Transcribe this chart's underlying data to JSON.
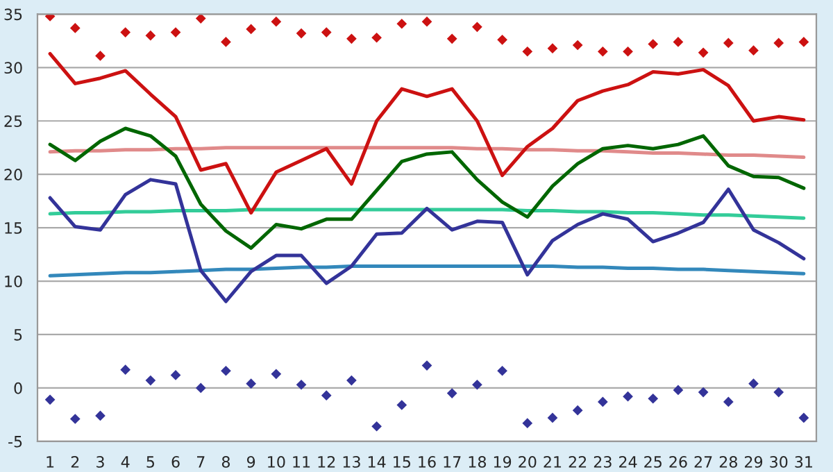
{
  "chart_data": {
    "type": "line",
    "x": [
      1,
      2,
      3,
      4,
      5,
      6,
      7,
      8,
      9,
      10,
      11,
      12,
      13,
      14,
      15,
      16,
      17,
      18,
      19,
      20,
      21,
      22,
      23,
      24,
      25,
      26,
      27,
      28,
      29,
      30,
      31
    ],
    "xlim": [
      0.5,
      31.5
    ],
    "xticks": [
      1,
      2,
      3,
      4,
      5,
      6,
      7,
      8,
      9,
      10,
      11,
      12,
      13,
      14,
      15,
      16,
      17,
      18,
      19,
      20,
      21,
      22,
      23,
      24,
      25,
      26,
      27,
      28,
      29,
      30,
      31
    ],
    "ylim": [
      -5,
      35
    ],
    "yticks": [
      -5,
      0,
      5,
      10,
      15,
      20,
      25,
      30,
      35
    ],
    "grid": "y",
    "legend": false,
    "series": [
      {
        "color": "#e08a8a",
        "values": [
          22.1,
          22.2,
          22.2,
          22.3,
          22.3,
          22.4,
          22.4,
          22.5,
          22.5,
          22.5,
          22.5,
          22.5,
          22.5,
          22.5,
          22.5,
          22.5,
          22.5,
          22.4,
          22.4,
          22.3,
          22.3,
          22.2,
          22.2,
          22.1,
          22.0,
          22.0,
          21.9,
          21.8,
          21.8,
          21.7,
          21.6
        ]
      },
      {
        "color": "#33cc99",
        "values": [
          16.3,
          16.4,
          16.4,
          16.5,
          16.5,
          16.6,
          16.6,
          16.6,
          16.7,
          16.7,
          16.7,
          16.7,
          16.7,
          16.7,
          16.7,
          16.7,
          16.7,
          16.7,
          16.7,
          16.6,
          16.6,
          16.5,
          16.5,
          16.4,
          16.4,
          16.3,
          16.2,
          16.2,
          16.1,
          16.0,
          15.9
        ]
      },
      {
        "color": "#3388bb",
        "values": [
          10.5,
          10.6,
          10.7,
          10.8,
          10.8,
          10.9,
          11.0,
          11.1,
          11.1,
          11.2,
          11.3,
          11.3,
          11.4,
          11.4,
          11.4,
          11.4,
          11.4,
          11.4,
          11.4,
          11.4,
          11.4,
          11.3,
          11.3,
          11.2,
          11.2,
          11.1,
          11.1,
          11.0,
          10.9,
          10.8,
          10.7
        ]
      },
      {
        "color": "#cc1111",
        "values": [
          31.3,
          28.5,
          29.0,
          29.7,
          27.5,
          25.4,
          20.4,
          21.0,
          16.4,
          20.2,
          21.3,
          22.4,
          19.1,
          25.0,
          28.0,
          27.3,
          28.0,
          25.0,
          19.9,
          22.6,
          24.3,
          26.9,
          27.8,
          28.4,
          29.6,
          29.4,
          29.8,
          28.3,
          25.0,
          25.4,
          25.1
        ]
      },
      {
        "color": "#006600",
        "values": [
          22.8,
          21.3,
          23.1,
          24.3,
          23.6,
          21.7,
          17.2,
          14.7,
          13.1,
          15.3,
          14.9,
          15.8,
          15.8,
          18.5,
          21.2,
          21.9,
          22.1,
          19.5,
          17.4,
          16.0,
          18.9,
          21.0,
          22.4,
          22.7,
          22.4,
          22.8,
          23.6,
          20.8,
          19.8,
          19.7,
          18.7
        ]
      },
      {
        "color": "#333399",
        "values": [
          17.8,
          15.1,
          14.8,
          18.1,
          19.5,
          19.1,
          11.0,
          8.1,
          10.9,
          12.4,
          12.4,
          9.8,
          11.4,
          14.4,
          14.5,
          16.8,
          14.8,
          15.6,
          15.5,
          10.6,
          13.8,
          15.3,
          16.3,
          15.8,
          13.7,
          14.5,
          15.5,
          18.6,
          14.8,
          13.6,
          12.1
        ]
      },
      {
        "type": "scatter",
        "marker": "diamond",
        "color": "#cc1111",
        "values": [
          34.8,
          33.7,
          31.1,
          33.3,
          33.0,
          33.3,
          34.6,
          32.4,
          33.6,
          34.3,
          33.2,
          33.3,
          32.7,
          32.8,
          34.1,
          34.3,
          32.7,
          33.8,
          32.6,
          31.5,
          31.8,
          32.1,
          31.5,
          31.5,
          32.2,
          32.4,
          31.4,
          32.3,
          31.6,
          32.3,
          32.4
        ]
      },
      {
        "type": "scatter",
        "marker": "diamond",
        "color": "#333399",
        "values": [
          -1.1,
          -2.9,
          -2.6,
          1.7,
          0.7,
          1.2,
          0.0,
          1.6,
          0.4,
          1.3,
          0.3,
          -0.7,
          0.7,
          -3.6,
          -1.6,
          2.1,
          -0.5,
          0.3,
          1.6,
          -3.3,
          -2.8,
          -2.1,
          -1.3,
          -0.8,
          -1.0,
          -0.2,
          -0.4,
          -1.3,
          0.4,
          -0.4,
          -2.8
        ]
      }
    ]
  }
}
